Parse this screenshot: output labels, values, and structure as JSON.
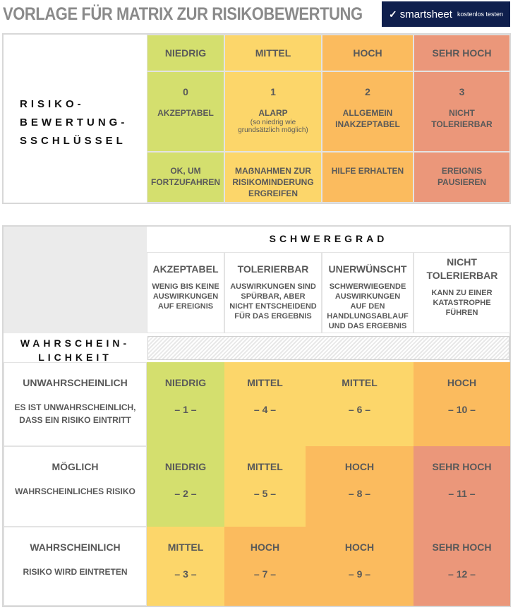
{
  "title": "VORLAGE FÜR MATRIX ZUR RISIKOBEWERTUNG",
  "logo": {
    "brand": "smartsheet",
    "cta": "kostenlos testen"
  },
  "key": {
    "label_lines": [
      "RISIKO-",
      "BEWERTUNG-",
      "SSCHLÜSSEL"
    ],
    "columns": [
      {
        "level": "NIEDRIG",
        "score": "0",
        "meaning": "AKZEPTABEL",
        "note": "",
        "action": "OK, UM FORTZUFAHREN",
        "color": "#d4df6e"
      },
      {
        "level": "MITTEL",
        "score": "1",
        "meaning": "ALARP",
        "note": "(so niedrig wie grundsätzlich möglich)",
        "action": "MAẞNAHMEN ZUR RISIKOMINDERUNG ERGREIFEN",
        "color": "#fcd66a"
      },
      {
        "level": "HOCH",
        "score": "2",
        "meaning": "ALLGEMEIN INAKZEPTABEL",
        "note": "",
        "action": "HILFE ERHALTEN",
        "color": "#fbbb5e"
      },
      {
        "level": "SEHR HOCH",
        "score": "3",
        "meaning": "NICHT TOLERIERBAR",
        "note": "",
        "action": "EREIGNIS PAUSIEREN",
        "color": "#eb977a"
      }
    ]
  },
  "matrix": {
    "severity_label": "SCHWEREGRAD",
    "likelihood_label_lines": [
      "WAHRSCHEIN-",
      "LICHKEIT"
    ],
    "severity": [
      {
        "title": "AKZEPTABEL",
        "desc": "WENIG BIS KEINE AUSWIRKUNGEN AUF EREIGNIS"
      },
      {
        "title": "TOLERIERBAR",
        "desc": "AUSWIRKUNGEN SIND SPÜRBAR, ABER NICHT ENTSCHEIDEND FÜR DAS ERGEBNIS"
      },
      {
        "title": "UNERWÜNSCHT",
        "desc": "SCHWERWIEGENDE AUSWIRKUNGEN AUF DEN HANDLUNGSABLAUF UND DAS ERGEBNIS"
      },
      {
        "title": "NICHT TOLERIERBAR",
        "desc": "KANN ZU EINER KATASTROPHE FÜHREN"
      }
    ],
    "rows": [
      {
        "title": "UNWAHRSCHEINLICH",
        "desc": "ES IST UNWAHRSCHEINLICH, DASS EIN RISIKO EINTRITT",
        "cells": [
          {
            "level": "NIEDRIG",
            "num": "– 1 –",
            "c": "g"
          },
          {
            "level": "MITTEL",
            "num": "– 4 –",
            "c": "y"
          },
          {
            "level": "MITTEL",
            "num": "– 6 –",
            "c": "y"
          },
          {
            "level": "HOCH",
            "num": "– 10 –",
            "c": "o"
          }
        ]
      },
      {
        "title": "MÖGLICH",
        "desc": "WAHRSCHEINLICHES RISIKO",
        "cells": [
          {
            "level": "NIEDRIG",
            "num": "– 2 –",
            "c": "g"
          },
          {
            "level": "MITTEL",
            "num": "– 5 –",
            "c": "y"
          },
          {
            "level": "HOCH",
            "num": "– 8 –",
            "c": "o"
          },
          {
            "level": "SEHR HOCH",
            "num": "– 11 –",
            "c": "r"
          }
        ]
      },
      {
        "title": "WAHRSCHEINLICH",
        "desc": "RISIKO WIRD EINTRETEN",
        "cells": [
          {
            "level": "MITTEL",
            "num": "– 3 –",
            "c": "y"
          },
          {
            "level": "HOCH",
            "num": "– 7 –",
            "c": "o"
          },
          {
            "level": "HOCH",
            "num": "– 9 –",
            "c": "o"
          },
          {
            "level": "SEHR HOCH",
            "num": "– 12 –",
            "c": "r"
          }
        ]
      }
    ]
  }
}
